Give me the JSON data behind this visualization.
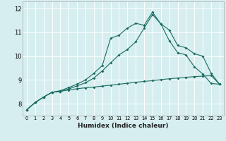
{
  "xlabel": "Humidex (Indice chaleur)",
  "bg_color": "#d6eef0",
  "grid_color": "#ffffff",
  "line_color": "#1a6b5e",
  "xlim": [
    -0.5,
    23.5
  ],
  "ylim": [
    7.5,
    12.3
  ],
  "x_ticks": [
    0,
    1,
    2,
    3,
    4,
    5,
    6,
    7,
    8,
    9,
    10,
    11,
    12,
    13,
    14,
    15,
    16,
    17,
    18,
    19,
    20,
    21,
    22,
    23
  ],
  "y_ticks": [
    8,
    9,
    10,
    11,
    12
  ],
  "line1_x": [
    0,
    1,
    2,
    3,
    4,
    5,
    6,
    7,
    8,
    9,
    10,
    11,
    12,
    13,
    14,
    15,
    16,
    17,
    18,
    19,
    20,
    21,
    22,
    23
  ],
  "line1_y": [
    7.75,
    8.05,
    8.28,
    8.48,
    8.52,
    8.58,
    8.63,
    8.67,
    8.7,
    8.74,
    8.78,
    8.82,
    8.86,
    8.9,
    8.94,
    8.97,
    9.01,
    9.05,
    9.08,
    9.11,
    9.14,
    9.16,
    9.18,
    8.82
  ],
  "line2_x": [
    0,
    1,
    2,
    3,
    4,
    5,
    6,
    7,
    8,
    9,
    10,
    11,
    12,
    13,
    14,
    15,
    16,
    17,
    18,
    19,
    20,
    21,
    22,
    23
  ],
  "line2_y": [
    7.75,
    8.05,
    8.28,
    8.48,
    8.52,
    8.62,
    8.75,
    8.88,
    9.08,
    9.38,
    9.72,
    10.05,
    10.28,
    10.6,
    11.18,
    11.75,
    11.35,
    11.1,
    10.45,
    10.35,
    10.1,
    10.0,
    9.28,
    8.82
  ],
  "line3_x": [
    0,
    1,
    2,
    3,
    4,
    5,
    6,
    7,
    8,
    9,
    10,
    11,
    12,
    13,
    14,
    15,
    16,
    17,
    18,
    19,
    20,
    21,
    22,
    23
  ],
  "line3_y": [
    7.75,
    8.05,
    8.28,
    8.48,
    8.55,
    8.68,
    8.82,
    9.0,
    9.28,
    9.6,
    10.75,
    10.88,
    11.18,
    11.38,
    11.3,
    11.85,
    11.35,
    10.65,
    10.15,
    10.05,
    9.55,
    9.25,
    8.85,
    8.82
  ],
  "markersize": 2.0
}
